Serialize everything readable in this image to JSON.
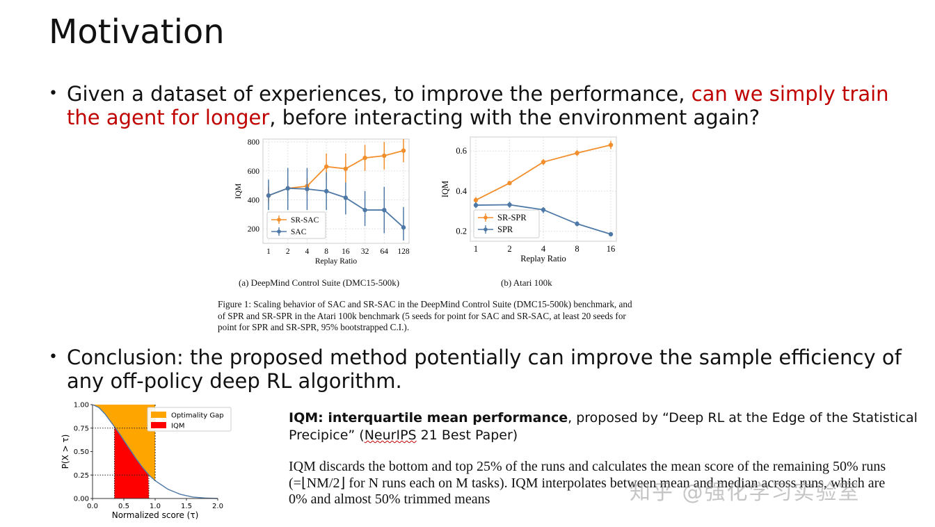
{
  "slide": {
    "title": "Motivation",
    "bullet1": {
      "part1": "Given a dataset of experiences, to improve the performance, ",
      "highlight": "can we simply train the agent for longer",
      "part2": ", before interacting with the environment again?"
    },
    "bullet2": "Conclusion: the proposed method potentially can improve the sample efficiency of any off-policy deep RL algorithm.",
    "subcaption_a": "(a) DeepMind Control Suite (DMC15-500k)",
    "subcaption_b": "(b) Atari 100k",
    "figure_caption": "Figure 1: Scaling behavior of SAC and SR-SAC in the DeepMind Control Suite (DMC15-500k) benchmark, and of SPR and SR-SPR in the Atari 100k benchmark (5 seeds for point for SAC and SR-SAC, at least 20 seeds for point for SPR and SR-SPR, 95% bootstrapped C.I.).",
    "iqm_bold": "IQM: interquartile mean performance",
    "iqm_rest": ", proposed by “Deep RL at the Edge of the Statistical Precipice” (",
    "iqm_neurips": "NeurIPS",
    "iqm_end": " 21 Best Paper)",
    "iqm_desc": "IQM discards the bottom and top 25% of the runs and calculates the mean score of the remaining 50% runs (=⌊NM/2⌋ for N runs each on M tasks). IQM interpolates between mean and median across runs, which are 0% and almost 50% trimmed means",
    "watermark": "知乎 @强化学习实验室",
    "bullet_symbol": "•"
  },
  "chart_data": [
    {
      "type": "line",
      "x": [
        "1",
        "2",
        "4",
        "8",
        "16",
        "32",
        "64",
        "128"
      ],
      "xlabel": "Replay Ratio",
      "ylabel": "IQM",
      "yticks": [
        200,
        400,
        600,
        800
      ],
      "ylim": [
        100,
        820
      ],
      "grid": true,
      "legend_position": "lower-left",
      "series": [
        {
          "name": "SR-SAC",
          "color": "#f28e2b",
          "values": [
            430,
            480,
            495,
            630,
            615,
            690,
            705,
            740
          ],
          "ci": [
            [
              380,
              490
            ],
            [
              420,
              540
            ],
            [
              440,
              550
            ],
            [
              540,
              720
            ],
            [
              520,
              720
            ],
            [
              600,
              780
            ],
            [
              610,
              800
            ],
            [
              660,
              820
            ]
          ]
        },
        {
          "name": "SAC",
          "color": "#4e79a7",
          "values": [
            430,
            480,
            475,
            460,
            415,
            330,
            330,
            210
          ],
          "ci": [
            [
              330,
              540
            ],
            [
              330,
              620
            ],
            [
              330,
              620
            ],
            [
              330,
              590
            ],
            [
              300,
              520
            ],
            [
              220,
              460
            ],
            [
              170,
              490
            ],
            [
              120,
              350
            ]
          ]
        }
      ]
    },
    {
      "type": "line",
      "x": [
        "1",
        "2",
        "4",
        "8",
        "16"
      ],
      "xlabel": "Replay Ratio",
      "ylabel": "IQM",
      "yticks": [
        0.2,
        0.4,
        0.6
      ],
      "ylim": [
        0.15,
        0.67
      ],
      "grid": true,
      "legend_position": "lower-left",
      "series": [
        {
          "name": "SR-SPR",
          "color": "#f28e2b",
          "values": [
            0.355,
            0.44,
            0.545,
            0.59,
            0.63
          ],
          "ci": [
            [
              0.34,
              0.37
            ],
            [
              0.43,
              0.45
            ],
            [
              0.53,
              0.56
            ],
            [
              0.575,
              0.605
            ],
            [
              0.61,
              0.65
            ]
          ]
        },
        {
          "name": "SPR",
          "color": "#4e79a7",
          "values": [
            0.33,
            0.332,
            0.307,
            0.237,
            0.185
          ],
          "ci": [
            [
              0.315,
              0.345
            ],
            [
              0.317,
              0.347
            ],
            [
              0.29,
              0.32
            ],
            [
              0.225,
              0.25
            ],
            [
              0.175,
              0.195
            ]
          ]
        }
      ]
    },
    {
      "type": "area",
      "xlabel": "Normalized score (τ)",
      "ylabel": "P(X > τ)",
      "xticks": [
        0.0,
        0.5,
        1.0,
        1.5,
        2.0
      ],
      "yticks": [
        0.0,
        0.25,
        0.5,
        0.75,
        1.0
      ],
      "xlim": [
        0,
        2.0
      ],
      "ylim": [
        0,
        1.0
      ],
      "legend_position": "top-right",
      "series": [
        {
          "name": "Optimality Gap",
          "color": "#ffa500"
        },
        {
          "name": "IQM",
          "color": "#ff0000"
        }
      ],
      "curve": {
        "x": [
          0,
          0.1,
          0.2,
          0.3,
          0.4,
          0.5,
          0.6,
          0.7,
          0.8,
          0.9,
          1.0,
          1.2,
          1.4,
          1.6,
          1.8,
          2.0
        ],
        "y": [
          1.0,
          0.97,
          0.9,
          0.81,
          0.72,
          0.62,
          0.52,
          0.42,
          0.33,
          0.25,
          0.19,
          0.1,
          0.045,
          0.015,
          0.005,
          0.0
        ]
      },
      "iqm_interval": [
        0.35,
        0.9
      ],
      "optimality_threshold": 1.0,
      "dotted_levels": [
        0.25,
        0.75
      ]
    }
  ]
}
